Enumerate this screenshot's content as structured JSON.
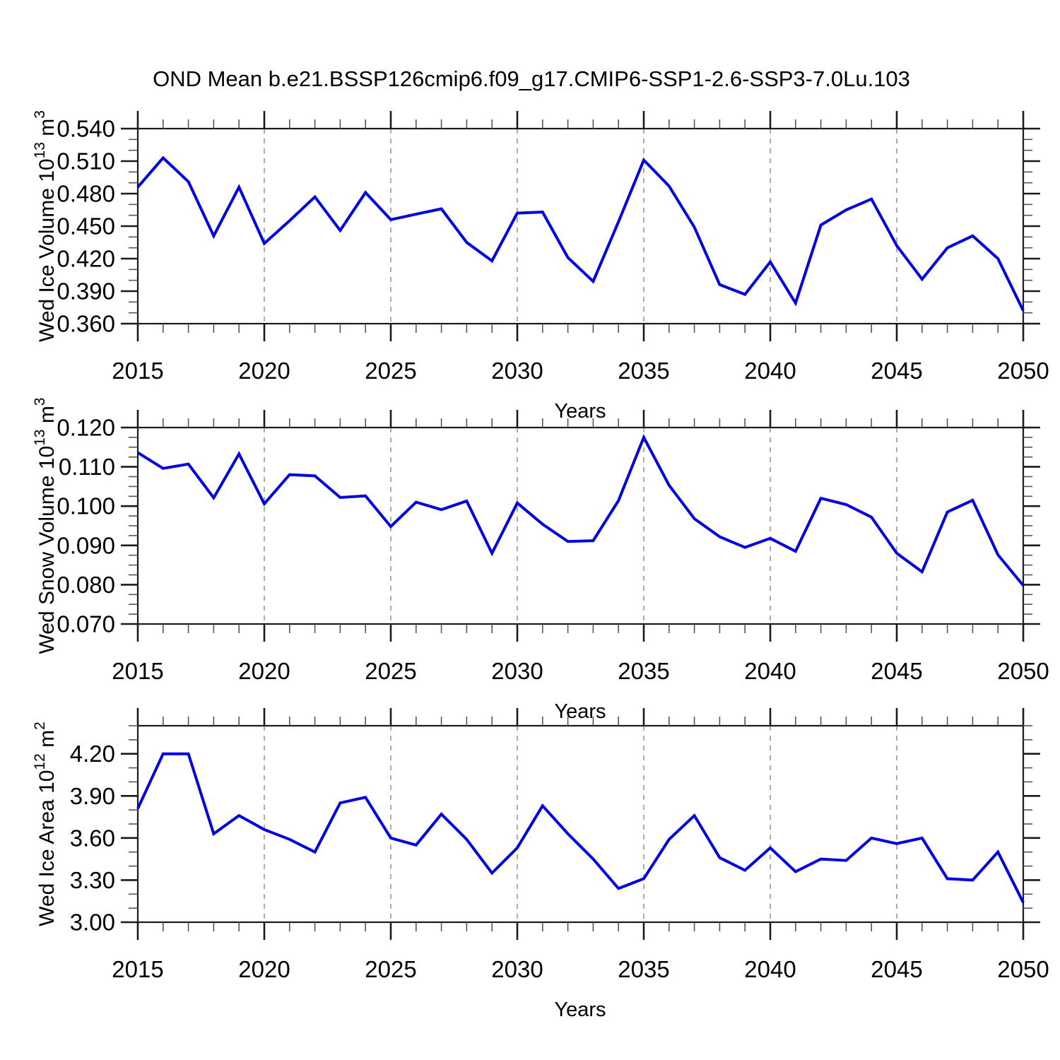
{
  "title": "OND Mean b.e21.BSSP126cmip6.f09_g17.CMIP6-SSP1-2.6-SSP3-7.0Lu.103",
  "line_color": "#0000e0",
  "x_axis": {
    "label": "Years",
    "start": 2015,
    "end": 2050,
    "major_step": 5,
    "minor_step": 1,
    "major_tick_labels": [
      "2015",
      "2020",
      "2025",
      "2030",
      "2035",
      "2040",
      "2045",
      "2050"
    ],
    "gridline_years": [
      2020,
      2025,
      2030,
      2035,
      2040,
      2045
    ]
  },
  "chart_data": [
    {
      "type": "line",
      "name": "wed-ice-volume",
      "ylabel": "Wed Ice Volume 10^13 m^3",
      "ylabel_parts": {
        "pre": "Wed Ice Volume 10",
        "exp1": "13",
        "mid": " m",
        "exp2": "3"
      },
      "x_start": 2015,
      "x_end": 2050,
      "ylim": [
        0.36,
        0.54
      ],
      "ytick_values": [
        0.54,
        0.51,
        0.48,
        0.45,
        0.42,
        0.39,
        0.36
      ],
      "ytick_labels": [
        "0.540",
        "0.510",
        "0.480",
        "0.450",
        "0.420",
        "0.390",
        "0.360"
      ],
      "y_minor_step": 0.01,
      "values": [
        0.486,
        0.513,
        0.491,
        0.441,
        0.486,
        0.434,
        0.455,
        0.477,
        0.446,
        0.481,
        0.456,
        0.461,
        0.466,
        0.435,
        0.418,
        0.462,
        0.463,
        0.421,
        0.399,
        0.454,
        0.511,
        0.487,
        0.449,
        0.396,
        0.387,
        0.417,
        0.379,
        0.451,
        0.465,
        0.475,
        0.432,
        0.401,
        0.43,
        0.441,
        0.42,
        0.372
      ]
    },
    {
      "type": "line",
      "name": "wed-snow-volume",
      "ylabel": "Wed Snow Volume 10^13 m^3",
      "ylabel_parts": {
        "pre": "Wed Snow Volume 10",
        "exp1": "13",
        "mid": " m",
        "exp2": "3"
      },
      "x_start": 2015,
      "x_end": 2050,
      "ylim": [
        0.07,
        0.12
      ],
      "ytick_values": [
        0.12,
        0.11,
        0.1,
        0.09,
        0.08,
        0.07
      ],
      "ytick_labels": [
        "0.120",
        "0.110",
        "0.100",
        "0.090",
        "0.080",
        "0.070"
      ],
      "y_minor_step": 0.0025,
      "values": [
        0.1136,
        0.1096,
        0.1107,
        0.1021,
        0.1133,
        0.1006,
        0.108,
        0.1077,
        0.1022,
        0.1026,
        0.0948,
        0.101,
        0.0991,
        0.1013,
        0.088,
        0.1008,
        0.0954,
        0.091,
        0.0912,
        0.1014,
        0.1175,
        0.1053,
        0.0968,
        0.0922,
        0.0895,
        0.0918,
        0.0885,
        0.102,
        0.1004,
        0.0972,
        0.088,
        0.0833,
        0.0985,
        0.1015,
        0.0876,
        0.0798
      ]
    },
    {
      "type": "line",
      "name": "wed-ice-area",
      "ylabel": "Wed Ice Area 10^12 m^2",
      "ylabel_parts": {
        "pre": "Wed Ice Area 10",
        "exp1": "12",
        "mid": " m",
        "exp2": "2"
      },
      "x_start": 2015,
      "x_end": 2050,
      "ylim": [
        3.0,
        4.4
      ],
      "ytick_values": [
        4.2,
        3.9,
        3.6,
        3.3,
        3.0
      ],
      "ytick_labels": [
        "4.20",
        "3.90",
        "3.60",
        "3.30",
        "3.00"
      ],
      "y_minor_step": 0.1,
      "values": [
        3.81,
        4.2,
        4.2,
        3.63,
        3.76,
        3.66,
        3.59,
        3.5,
        3.85,
        3.89,
        3.6,
        3.55,
        3.77,
        3.59,
        3.35,
        3.53,
        3.83,
        3.63,
        3.45,
        3.24,
        3.31,
        3.59,
        3.76,
        3.46,
        3.37,
        3.53,
        3.36,
        3.45,
        3.44,
        3.6,
        3.56,
        3.6,
        3.31,
        3.3,
        3.5,
        3.14
      ]
    }
  ]
}
